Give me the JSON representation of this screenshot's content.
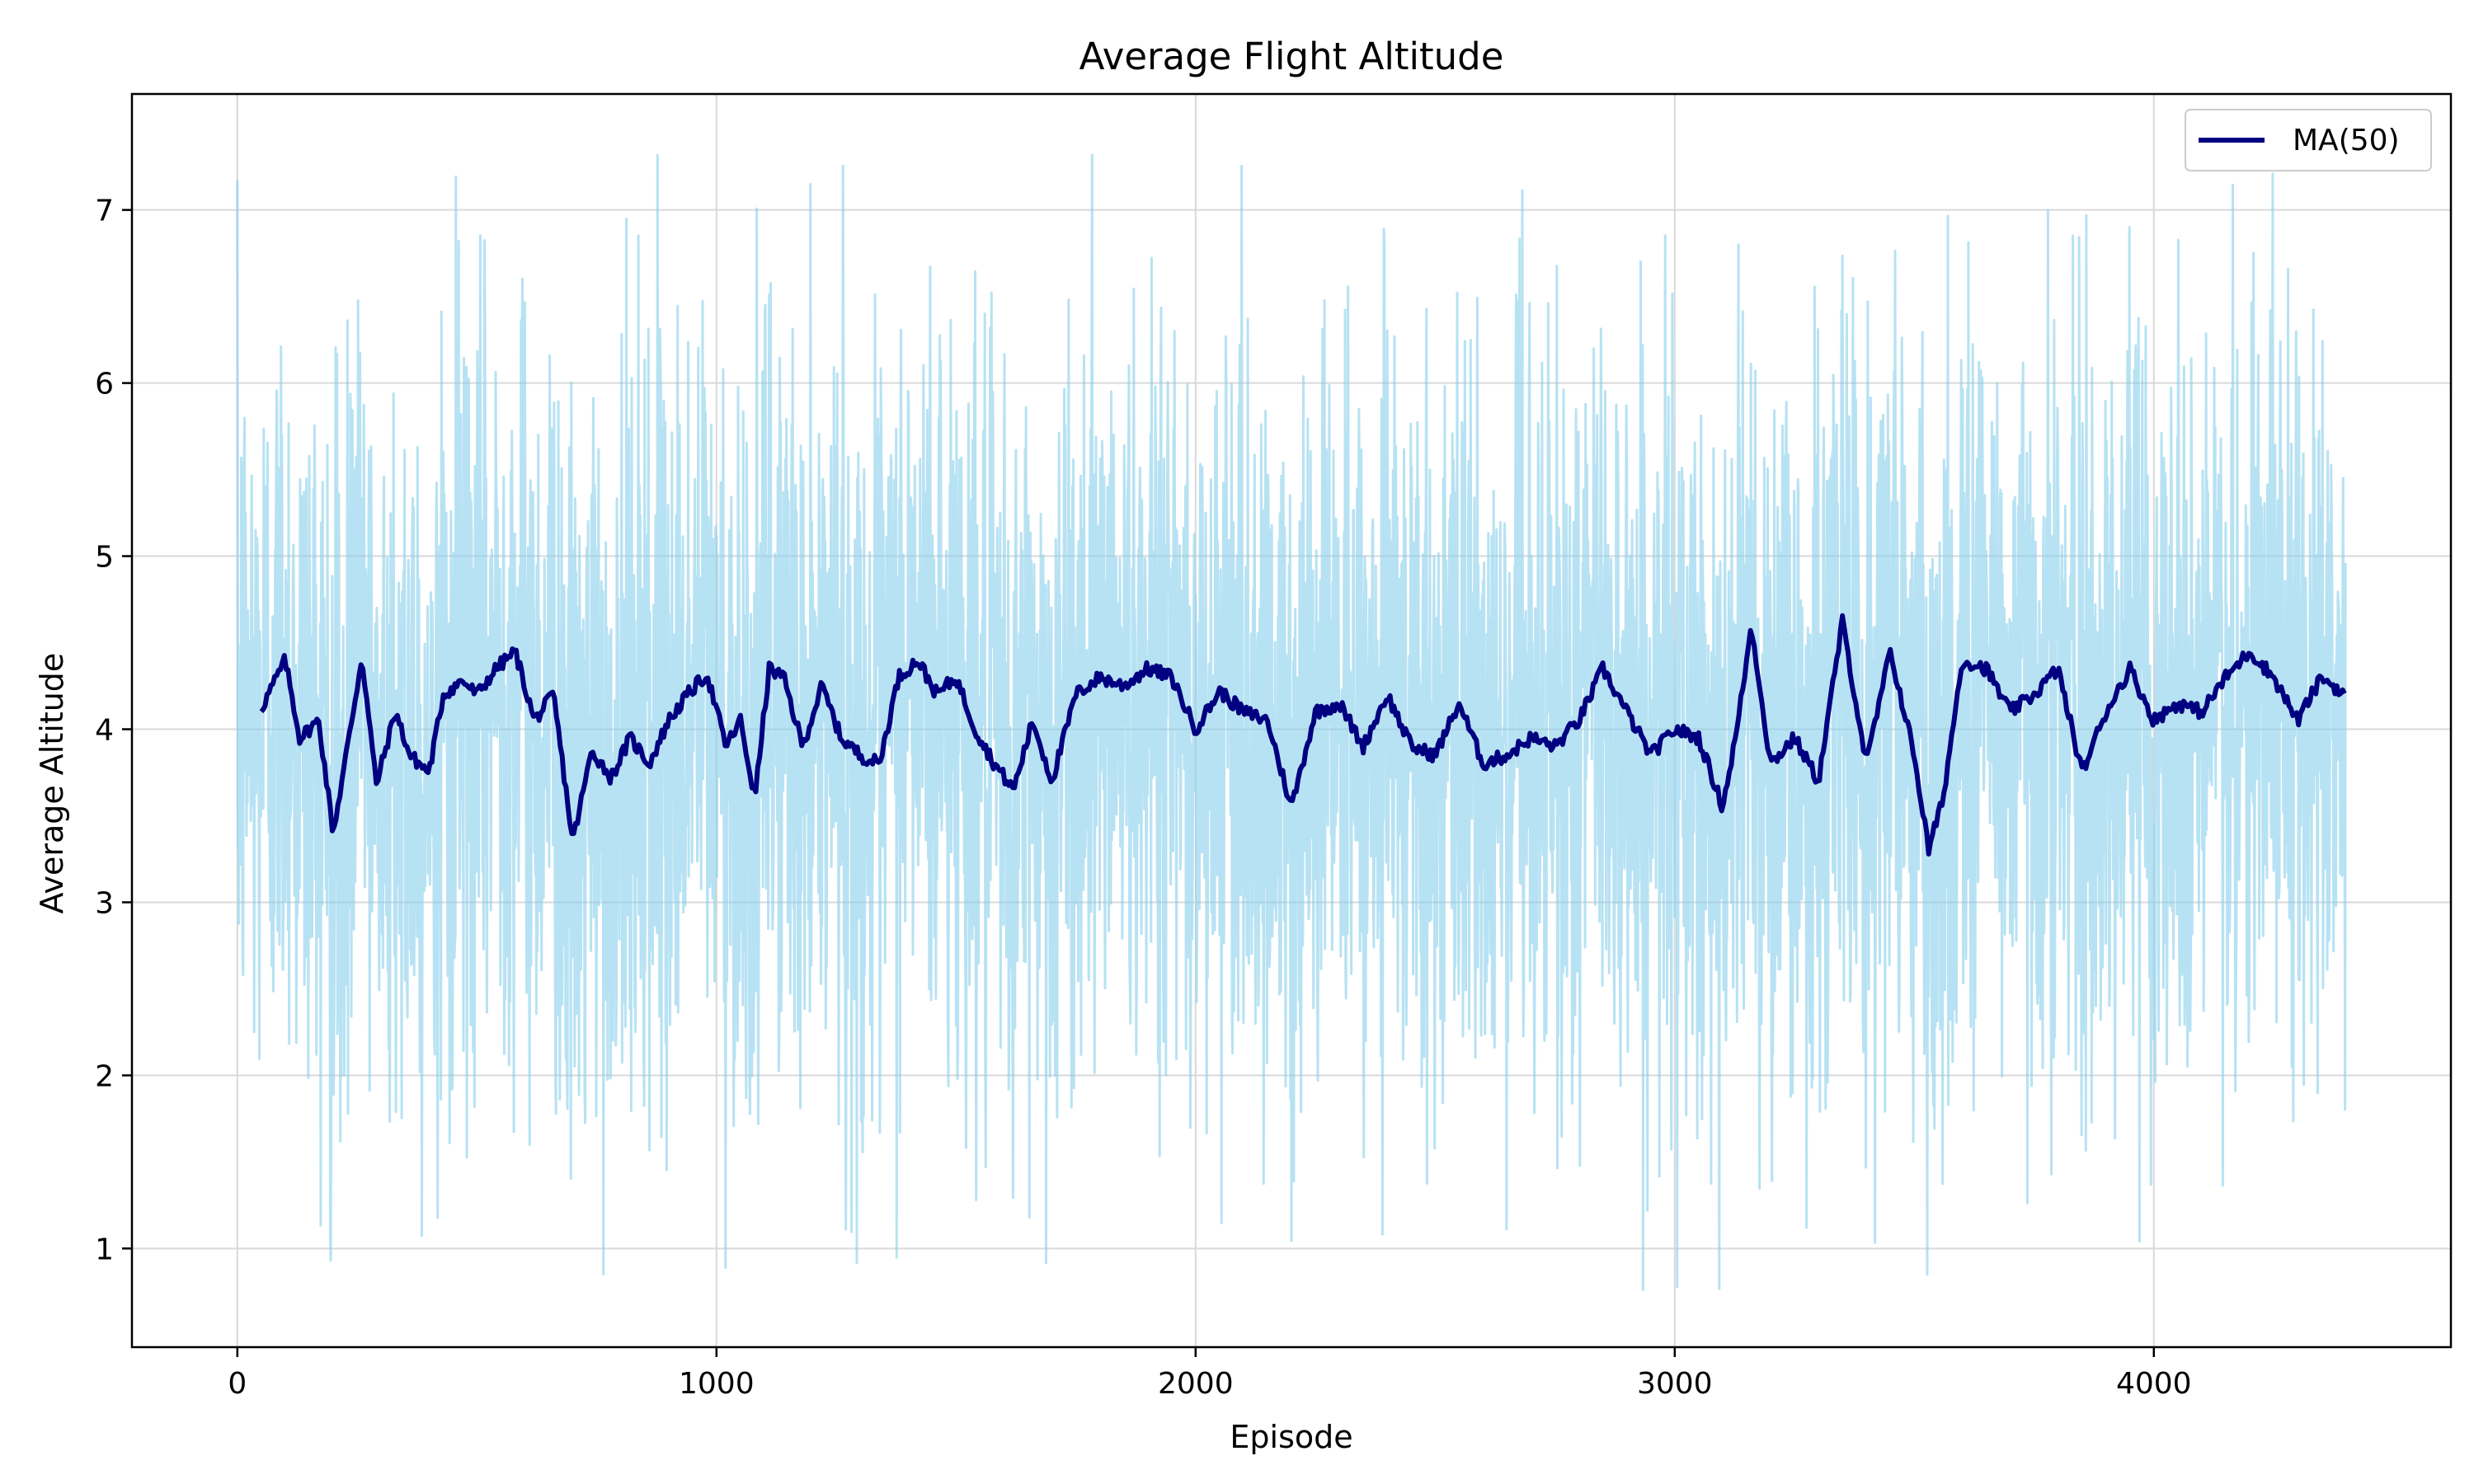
{
  "chart_data": {
    "type": "line",
    "title": "Average Flight Altitude",
    "xlabel": "Episode",
    "ylabel": "Average Altitude",
    "xlim": [
      -220,
      4620
    ],
    "ylim": [
      0.43,
      7.67
    ],
    "xticks": [
      0,
      1000,
      2000,
      3000,
      4000
    ],
    "yticks": [
      1,
      2,
      3,
      4,
      5,
      6,
      7
    ],
    "grid": true,
    "legend": {
      "placement": "top-right",
      "entries": [
        "MA(50)"
      ]
    },
    "colors": {
      "raw": "#87ceeb",
      "ma": "#000080",
      "grid": "#d9d9d9"
    },
    "raw_series": {
      "x_start": 0,
      "x_end": 4400,
      "points": 4401,
      "mean": 4.0,
      "stdev": 1.1,
      "min": 0.75,
      "max": 7.33
    },
    "series": [
      {
        "name": "MA(50)",
        "x": [
          50,
          100,
          130,
          170,
          200,
          230,
          260,
          290,
          330,
          360,
          400,
          430,
          470,
          500,
          540,
          580,
          620,
          660,
          700,
          740,
          780,
          820,
          860,
          900,
          940,
          980,
          1020,
          1050,
          1080,
          1110,
          1140,
          1180,
          1220,
          1260,
          1300,
          1340,
          1380,
          1420,
          1460,
          1500,
          1540,
          1580,
          1620,
          1660,
          1700,
          1750,
          1800,
          1850,
          1900,
          1950,
          2000,
          2050,
          2100,
          2150,
          2200,
          2250,
          2300,
          2350,
          2400,
          2450,
          2500,
          2550,
          2600,
          2650,
          2700,
          2750,
          2800,
          2850,
          2900,
          2950,
          3000,
          3050,
          3100,
          3130,
          3160,
          3200,
          3250,
          3300,
          3350,
          3400,
          3450,
          3500,
          3530,
          3560,
          3600,
          3650,
          3700,
          3750,
          3800,
          3850,
          3900,
          3950,
          4000,
          4050,
          4100,
          4150,
          4200,
          4250,
          4300,
          4350,
          4400
        ],
        "values": [
          4.12,
          4.4,
          3.95,
          4.05,
          3.4,
          3.9,
          4.42,
          3.68,
          4.1,
          3.85,
          3.75,
          4.2,
          4.28,
          4.2,
          4.35,
          4.45,
          4.05,
          4.2,
          3.35,
          3.88,
          3.72,
          3.95,
          3.8,
          4.05,
          4.2,
          4.32,
          3.9,
          4.05,
          3.6,
          4.35,
          4.3,
          3.9,
          4.25,
          3.95,
          3.85,
          3.8,
          4.3,
          4.4,
          4.2,
          4.3,
          4.0,
          3.8,
          3.65,
          4.05,
          3.7,
          4.2,
          4.3,
          4.25,
          4.35,
          4.3,
          4.0,
          4.22,
          4.1,
          4.05,
          3.55,
          4.1,
          4.15,
          3.9,
          4.2,
          3.9,
          3.85,
          4.15,
          3.8,
          3.85,
          3.95,
          3.9,
          4.05,
          4.35,
          4.1,
          3.85,
          4.0,
          3.95,
          3.55,
          4.0,
          4.6,
          3.8,
          3.95,
          3.7,
          4.62,
          3.8,
          4.45,
          3.85,
          3.3,
          3.6,
          4.4,
          4.35,
          4.1,
          4.2,
          4.35,
          3.75,
          4.1,
          4.35,
          4.05,
          4.15,
          4.1,
          4.3,
          4.45,
          4.3,
          4.05,
          4.3,
          4.2
        ]
      }
    ]
  }
}
